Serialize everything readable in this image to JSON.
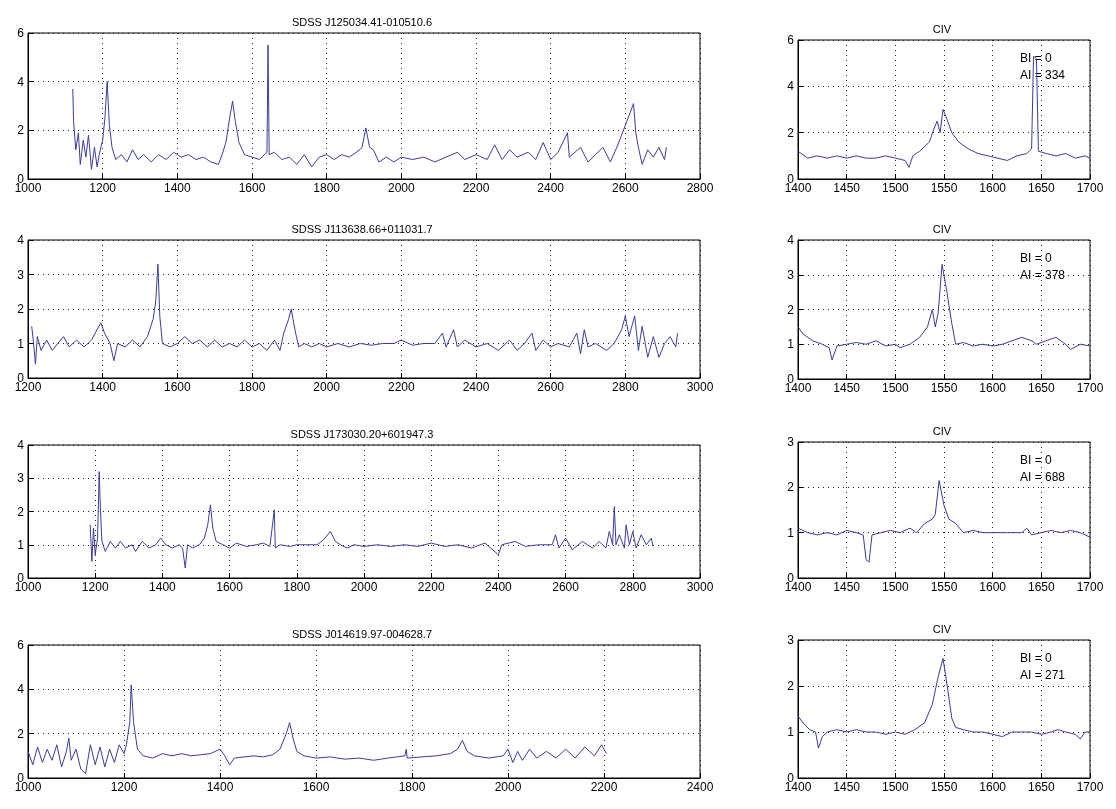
{
  "chart_data": [
    {
      "type": "line",
      "title": "SDSS J125034.41-010510.6",
      "color": "#3c3c9c",
      "grid": true,
      "marker": "none",
      "line_style": "solid",
      "xlim": [
        1000,
        2800
      ],
      "xticks": [
        1000,
        1200,
        1400,
        1600,
        1800,
        2000,
        2200,
        2400,
        2600,
        2800
      ],
      "ylim": [
        0,
        6
      ],
      "yticks": [
        0,
        2,
        4,
        6
      ],
      "x": [
        1120,
        1122,
        1128,
        1135,
        1140,
        1148,
        1155,
        1162,
        1170,
        1178,
        1185,
        1192,
        1200,
        1206,
        1212,
        1218,
        1225,
        1235,
        1250,
        1265,
        1280,
        1295,
        1310,
        1330,
        1350,
        1370,
        1390,
        1410,
        1430,
        1450,
        1470,
        1490,
        1510,
        1520,
        1530,
        1540,
        1548,
        1555,
        1565,
        1580,
        1600,
        1620,
        1640,
        1643,
        1646,
        1660,
        1680,
        1700,
        1720,
        1740,
        1760,
        1780,
        1800,
        1820,
        1840,
        1860,
        1880,
        1895,
        1905,
        1915,
        1925,
        1940,
        1960,
        1980,
        2000,
        2030,
        2060,
        2090,
        2120,
        2150,
        2170,
        2200,
        2230,
        2250,
        2270,
        2290,
        2310,
        2340,
        2360,
        2380,
        2400,
        2420,
        2445,
        2450,
        2480,
        2500,
        2520,
        2540,
        2560,
        2580,
        2622,
        2628,
        2635,
        2645,
        2660,
        2675,
        2690,
        2705,
        2710
      ],
      "values": [
        3.7,
        2.4,
        1.2,
        1.9,
        0.6,
        1.6,
        0.9,
        1.8,
        0.4,
        1.3,
        0.5,
        1.1,
        1.6,
        2.5,
        4,
        2.2,
        1.3,
        0.8,
        1,
        0.7,
        1.2,
        0.8,
        1,
        0.7,
        1,
        0.8,
        1.1,
        0.9,
        1,
        0.8,
        0.9,
        0.7,
        0.6,
        1,
        1.5,
        2.5,
        3.2,
        2.4,
        1.5,
        1,
        0.9,
        0.8,
        1.1,
        5.5,
        1,
        1.1,
        0.8,
        0.9,
        0.6,
        1,
        0.5,
        0.9,
        1,
        0.8,
        1,
        0.9,
        1.1,
        1.3,
        2.1,
        1.3,
        1.2,
        0.7,
        0.9,
        0.7,
        0.9,
        0.8,
        0.9,
        0.7,
        0.9,
        1.1,
        0.8,
        1,
        0.8,
        1.4,
        0.8,
        1.2,
        0.9,
        1.1,
        0.8,
        1.5,
        0.8,
        1.1,
        1.9,
        0.9,
        1.3,
        0.7,
        1,
        1.3,
        0.7,
        1.4,
        3.1,
        1.9,
        1.3,
        0.6,
        1.2,
        0.9,
        1.3,
        0.8,
        1.3
      ]
    },
    {
      "type": "line",
      "title": "CIV",
      "color": "#3c3c9c",
      "grid": true,
      "marker": "none",
      "line_style": "solid",
      "xlim": [
        1400,
        1700
      ],
      "xticks": [
        1400,
        1450,
        1500,
        1550,
        1600,
        1650,
        1700
      ],
      "ylim": [
        0,
        6
      ],
      "yticks": [
        0,
        2,
        4,
        6
      ],
      "annotations": [
        "BI = 0",
        "AI = 334"
      ],
      "x": [
        1400,
        1410,
        1420,
        1430,
        1440,
        1450,
        1460,
        1470,
        1480,
        1490,
        1500,
        1510,
        1514,
        1518,
        1525,
        1535,
        1540,
        1543,
        1546,
        1549,
        1552,
        1558,
        1565,
        1575,
        1585,
        1595,
        1605,
        1615,
        1625,
        1635,
        1640,
        1642,
        1645,
        1647,
        1655,
        1665,
        1675,
        1685,
        1695,
        1700
      ],
      "values": [
        1.2,
        0.9,
        1,
        0.9,
        1,
        0.9,
        1,
        0.9,
        0.9,
        1,
        0.9,
        0.8,
        0.5,
        1,
        1.2,
        1.6,
        2.2,
        2.5,
        2,
        3,
        2.7,
        2,
        1.6,
        1.3,
        1.1,
        1,
        0.9,
        0.8,
        1,
        1.1,
        1.3,
        5.3,
        5.2,
        1.2,
        1.1,
        1,
        1.1,
        0.9,
        1,
        0.9
      ]
    },
    {
      "type": "line",
      "title": "SDSS J113638.66+011031.7",
      "color": "#3c3c9c",
      "grid": true,
      "marker": "none",
      "line_style": "solid",
      "xlim": [
        1200,
        3000
      ],
      "xticks": [
        1200,
        1400,
        1600,
        1800,
        2000,
        2200,
        2400,
        2600,
        2800,
        3000
      ],
      "ylim": [
        0,
        4
      ],
      "yticks": [
        0,
        1,
        2,
        3,
        4
      ],
      "x": [
        1210,
        1215,
        1220,
        1225,
        1235,
        1250,
        1265,
        1280,
        1295,
        1310,
        1330,
        1350,
        1370,
        1385,
        1395,
        1405,
        1420,
        1430,
        1440,
        1460,
        1480,
        1500,
        1520,
        1535,
        1542,
        1548,
        1553,
        1560,
        1580,
        1600,
        1620,
        1640,
        1660,
        1680,
        1700,
        1720,
        1740,
        1760,
        1780,
        1800,
        1820,
        1840,
        1860,
        1875,
        1885,
        1898,
        1905,
        1915,
        1925,
        1940,
        1960,
        1980,
        2000,
        2030,
        2060,
        2090,
        2120,
        2150,
        2180,
        2200,
        2230,
        2260,
        2290,
        2310,
        2320,
        2340,
        2350,
        2370,
        2400,
        2430,
        2460,
        2490,
        2510,
        2530,
        2550,
        2560,
        2580,
        2600,
        2620,
        2650,
        2670,
        2680,
        2690,
        2700,
        2720,
        2750,
        2770,
        2790,
        2800,
        2810,
        2825,
        2835,
        2845,
        2860,
        2875,
        2890,
        2905,
        2920,
        2935,
        2940
      ],
      "values": [
        1.5,
        1,
        0.4,
        1.2,
        0.8,
        1.1,
        0.8,
        1,
        1.2,
        0.9,
        1.1,
        0.9,
        1.1,
        1.4,
        1.6,
        1.3,
        1,
        0.5,
        1,
        0.9,
        1.1,
        0.9,
        1.2,
        1.7,
        2.2,
        3.3,
        1.8,
        1,
        0.9,
        1,
        1.2,
        1,
        1.1,
        0.9,
        1.1,
        0.9,
        1,
        0.9,
        1.1,
        0.9,
        1,
        0.8,
        1.1,
        0.8,
        1.3,
        1.7,
        2,
        1.4,
        0.9,
        1,
        0.9,
        1,
        0.9,
        1,
        0.9,
        1,
        0.95,
        1,
        1,
        1.1,
        0.95,
        1,
        1,
        1.3,
        0.9,
        1.4,
        0.9,
        1.1,
        0.9,
        1,
        0.8,
        1.1,
        0.8,
        1,
        1.3,
        0.8,
        1.1,
        0.9,
        1,
        0.9,
        1.3,
        0.7,
        1.4,
        0.9,
        1,
        0.8,
        1,
        1.4,
        1.8,
        1.2,
        1.8,
        0.8,
        1.5,
        0.6,
        1.2,
        0.6,
        1,
        1.2,
        0.9,
        1.3
      ]
    },
    {
      "type": "line",
      "title": "CIV",
      "color": "#3c3c9c",
      "grid": true,
      "marker": "none",
      "line_style": "solid",
      "xlim": [
        1400,
        1700
      ],
      "xticks": [
        1400,
        1450,
        1500,
        1550,
        1600,
        1650,
        1700
      ],
      "ylim": [
        0,
        4
      ],
      "yticks": [
        0,
        1,
        2,
        3,
        4
      ],
      "annotations": [
        "BI = 0",
        "AI = 378"
      ],
      "x": [
        1400,
        1405,
        1415,
        1425,
        1432,
        1435,
        1440,
        1450,
        1460,
        1470,
        1480,
        1490,
        1500,
        1505,
        1515,
        1525,
        1533,
        1538,
        1541,
        1544,
        1548,
        1553,
        1558,
        1562,
        1570,
        1580,
        1590,
        1600,
        1610,
        1620,
        1630,
        1640,
        1645,
        1655,
        1665,
        1675,
        1680,
        1690,
        1700
      ],
      "values": [
        1.5,
        1.3,
        1.1,
        1,
        0.9,
        0.55,
        0.95,
        1,
        1.05,
        1,
        1.1,
        0.95,
        1,
        0.9,
        1,
        1.2,
        1.5,
        2,
        1.5,
        1.9,
        3.3,
        2.5,
        1.6,
        1,
        1.05,
        0.95,
        1,
        0.95,
        1,
        1.1,
        1.2,
        1.1,
        1,
        1.1,
        1.2,
        1,
        0.85,
        1,
        0.95
      ]
    },
    {
      "type": "line",
      "title": "SDSS J173030.20+601947.3",
      "color": "#3c3c9c",
      "grid": true,
      "marker": "none",
      "line_style": "solid",
      "xlim": [
        1000,
        3000
      ],
      "xticks": [
        1000,
        1200,
        1400,
        1600,
        1800,
        2000,
        2200,
        2400,
        2600,
        2800,
        3000
      ],
      "ylim": [
        0,
        4
      ],
      "yticks": [
        0,
        1,
        2,
        3,
        4
      ],
      "x": [
        1185,
        1190,
        1195,
        1200,
        1207,
        1212,
        1215,
        1220,
        1230,
        1245,
        1260,
        1275,
        1290,
        1310,
        1320,
        1340,
        1360,
        1380,
        1395,
        1410,
        1430,
        1450,
        1460,
        1468,
        1475,
        1490,
        1510,
        1525,
        1535,
        1543,
        1550,
        1560,
        1580,
        1600,
        1620,
        1650,
        1680,
        1700,
        1720,
        1733,
        1736,
        1750,
        1780,
        1800,
        1830,
        1860,
        1880,
        1900,
        1915,
        1930,
        1950,
        1970,
        2000,
        2040,
        2080,
        2120,
        2160,
        2200,
        2240,
        2280,
        2320,
        2360,
        2400,
        2410,
        2450,
        2480,
        2520,
        2560,
        2570,
        2580,
        2600,
        2620,
        2650,
        2680,
        2700,
        2720,
        2730,
        2740,
        2745,
        2750,
        2760,
        2775,
        2780,
        2790,
        2800,
        2810,
        2825,
        2840,
        2855,
        2860
      ],
      "values": [
        1.6,
        0.5,
        1.5,
        0.7,
        1.2,
        3.2,
        2.2,
        1.1,
        0.8,
        1.1,
        0.9,
        1.1,
        0.9,
        1,
        0.8,
        1.1,
        0.9,
        1,
        1.2,
        1,
        0.9,
        1,
        0.9,
        0.3,
        1,
        0.9,
        1,
        1.2,
        1.6,
        2.2,
        1.5,
        1.1,
        1,
        0.9,
        1.05,
        0.95,
        1,
        1.05,
        0.95,
        2.05,
        0.9,
        1,
        0.95,
        1,
        1,
        1,
        1.15,
        1.4,
        1.1,
        1,
        0.9,
        1,
        0.95,
        1,
        0.95,
        1,
        0.95,
        1.05,
        0.95,
        1,
        0.9,
        1.05,
        0.7,
        1,
        1.1,
        0.95,
        1,
        1,
        1.3,
        0.9,
        1.2,
        0.85,
        1.1,
        0.9,
        1.1,
        0.9,
        1.4,
        1,
        2.15,
        1,
        1.3,
        0.9,
        1.6,
        1,
        1.4,
        0.9,
        1.3,
        1,
        1.2,
        0.95
      ]
    },
    {
      "type": "line",
      "title": "CIV",
      "color": "#3c3c9c",
      "grid": true,
      "marker": "none",
      "line_style": "solid",
      "xlim": [
        1400,
        1700
      ],
      "xticks": [
        1400,
        1450,
        1500,
        1550,
        1600,
        1650,
        1700
      ],
      "ylim": [
        0,
        3
      ],
      "yticks": [
        0,
        1,
        2,
        3
      ],
      "annotations": [
        "BI = 0",
        "AI = 688"
      ],
      "x": [
        1400,
        1410,
        1420,
        1430,
        1440,
        1450,
        1460,
        1467,
        1470,
        1473,
        1476,
        1485,
        1495,
        1505,
        1515,
        1522,
        1530,
        1538,
        1541,
        1545,
        1550,
        1555,
        1562,
        1570,
        1580,
        1590,
        1600,
        1615,
        1630,
        1635,
        1640,
        1650,
        1660,
        1670,
        1680,
        1690,
        1700
      ],
      "values": [
        1.1,
        1,
        0.95,
        1,
        0.95,
        1.05,
        1,
        0.95,
        0.4,
        0.35,
        0.95,
        1,
        1.05,
        1,
        1.1,
        1,
        1.2,
        1.3,
        1.4,
        2.15,
        1.6,
        1.3,
        1.2,
        1,
        1.05,
        1,
        1,
        1,
        1,
        1.1,
        0.95,
        1,
        1.05,
        1,
        1.05,
        1,
        0.9
      ]
    },
    {
      "type": "line",
      "title": "SDSS J014619.97-004628.7",
      "color": "#3c3c9c",
      "grid": true,
      "marker": "none",
      "line_style": "solid",
      "xlim": [
        1000,
        2400
      ],
      "xticks": [
        1000,
        1200,
        1400,
        1600,
        1800,
        2000,
        2200,
        2400
      ],
      "ylim": [
        0,
        6
      ],
      "yticks": [
        0,
        2,
        4,
        6
      ],
      "x": [
        1000,
        1010,
        1020,
        1030,
        1040,
        1050,
        1060,
        1070,
        1080,
        1085,
        1090,
        1100,
        1110,
        1120,
        1130,
        1140,
        1150,
        1160,
        1170,
        1180,
        1190,
        1200,
        1205,
        1212,
        1215,
        1220,
        1228,
        1240,
        1260,
        1280,
        1300,
        1320,
        1340,
        1360,
        1380,
        1400,
        1410,
        1420,
        1430,
        1450,
        1470,
        1490,
        1510,
        1525,
        1538,
        1545,
        1552,
        1560,
        1575,
        1600,
        1630,
        1660,
        1690,
        1720,
        1750,
        1785,
        1788,
        1790,
        1820,
        1850,
        1880,
        1895,
        1905,
        1915,
        1930,
        1960,
        1990,
        2000,
        2010,
        2020,
        2030,
        2045,
        2060,
        2080,
        2100,
        2120,
        2140,
        2160,
        2180,
        2195,
        2205
      ],
      "values": [
        1.2,
        0.6,
        1.4,
        0.7,
        1.3,
        0.8,
        1.5,
        0.5,
        1.2,
        1.8,
        0.8,
        1.3,
        0.4,
        0.2,
        1.5,
        0.6,
        1.4,
        0.5,
        1.3,
        0.7,
        1.5,
        1.1,
        1.5,
        2.5,
        4.2,
        2.5,
        1.3,
        1,
        0.9,
        1.1,
        1,
        1.1,
        1,
        1.05,
        1.1,
        1.3,
        1,
        0.6,
        0.9,
        0.95,
        1,
        0.95,
        1.05,
        1.3,
        2,
        2.5,
        1.8,
        1.2,
        1,
        0.9,
        0.95,
        0.85,
        0.9,
        0.8,
        0.9,
        1,
        1.3,
        0.9,
        0.95,
        1,
        1.1,
        1.3,
        1.7,
        1.2,
        1,
        0.9,
        1,
        1.3,
        0.7,
        1.2,
        0.8,
        1.3,
        0.9,
        1.2,
        0.9,
        1.3,
        0.9,
        1.4,
        1,
        1.5,
        1.1
      ]
    },
    {
      "type": "line",
      "title": "CIV",
      "color": "#3c3c9c",
      "grid": true,
      "marker": "none",
      "line_style": "solid",
      "xlim": [
        1400,
        1700
      ],
      "xticks": [
        1400,
        1450,
        1500,
        1550,
        1600,
        1650,
        1700
      ],
      "ylim": [
        0,
        3
      ],
      "yticks": [
        0,
        1,
        2,
        3
      ],
      "annotations": [
        "BI = 0",
        "AI = 271"
      ],
      "x": [
        1400,
        1405,
        1412,
        1418,
        1421,
        1425,
        1430,
        1440,
        1450,
        1460,
        1470,
        1480,
        1490,
        1500,
        1510,
        1520,
        1530,
        1538,
        1544,
        1549,
        1554,
        1558,
        1562,
        1570,
        1580,
        1590,
        1600,
        1610,
        1620,
        1630,
        1640,
        1650,
        1660,
        1667,
        1675,
        1685,
        1690,
        1695,
        1700
      ],
      "values": [
        1.35,
        1.2,
        1.05,
        1,
        0.65,
        0.9,
        1,
        1.05,
        1,
        1.05,
        1,
        1,
        0.95,
        1,
        0.95,
        1.05,
        1.2,
        1.6,
        2.2,
        2.6,
        1.9,
        1.3,
        1.1,
        1.05,
        1,
        1,
        0.95,
        0.9,
        1,
        1,
        1,
        0.95,
        1,
        1.05,
        1,
        0.95,
        0.85,
        1,
        1
      ]
    }
  ]
}
